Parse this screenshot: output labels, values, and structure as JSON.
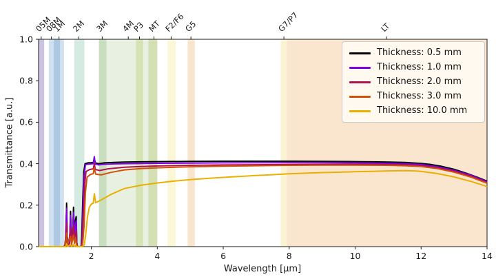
{
  "chart_data": {
    "type": "line",
    "title": "",
    "xlabel": "Wavelength [µm]",
    "ylabel": "Transmittance [a.u.]",
    "xlim": [
      0.4,
      14
    ],
    "ylim": [
      0.0,
      1.0
    ],
    "grid": false,
    "legend_position": "upper right",
    "x_ticks": [
      2,
      4,
      6,
      8,
      10,
      12,
      14
    ],
    "y_ticks": [
      0.0,
      0.2,
      0.4,
      0.6,
      0.8,
      1.0
    ],
    "top_axis_bands": [
      {
        "label": "05M",
        "tick_um": 0.48,
        "span_um": [
          0.39,
          0.57
        ],
        "color": "rgba(98,72,161,0.33)"
      },
      {
        "label": "08M",
        "tick_um": 0.79,
        "span_um": [
          0.71,
          1.05
        ],
        "color": "rgba(45,115,180,0.22)"
      },
      {
        "label": "1M",
        "tick_um": 1.02,
        "span_um": [
          0.86,
          1.17
        ],
        "color": "rgba(45,115,180,0.22)"
      },
      {
        "label": "2M",
        "tick_um": 1.62,
        "span_um": [
          1.48,
          1.79
        ],
        "color": "rgba(80,170,135,0.24)"
      },
      {
        "label": "3M",
        "tick_um": 2.33,
        "span_um": [
          2.23,
          2.46
        ],
        "color": "rgba(80,150,70,0.22)"
      },
      {
        "label": "4M",
        "tick_um": 3.12,
        "span_um": [
          2.23,
          4.0
        ],
        "color": "rgba(120,170,80,0.17)"
      },
      {
        "label": "P3",
        "tick_um": 3.46,
        "span_um": [
          3.35,
          3.57
        ],
        "color": "rgba(170,190,70,0.28)"
      },
      {
        "label": "MT",
        "tick_um": 3.9,
        "span_um": [
          3.73,
          4.0
        ],
        "color": "rgba(165,185,75,0.30)"
      },
      {
        "label": "F2/F6",
        "tick_um": 4.42,
        "span_um": [
          4.31,
          4.56
        ],
        "color": "rgba(240,225,110,0.28)"
      },
      {
        "label": "G5",
        "tick_um": 5.02,
        "span_um": [
          4.92,
          5.14
        ],
        "color": "rgba(235,175,105,0.33)"
      },
      {
        "label": "G7/P7",
        "tick_um": 7.84,
        "span_um": [
          7.74,
          7.93
        ],
        "color": "rgba(242,222,120,0.32)"
      },
      {
        "label": "LT",
        "tick_um": 10.95,
        "span_um": [
          7.93,
          14.0
        ],
        "color": "rgba(237,162,80,0.28)"
      }
    ],
    "series": [
      {
        "name": "thickness-0.5mm",
        "legend_label": "Thickness: 0.5 mm",
        "color": "#000000",
        "points": [
          [
            0.4,
            0
          ],
          [
            1.17,
            0
          ],
          [
            1.2,
            0.01
          ],
          [
            1.23,
            0.06
          ],
          [
            1.25,
            0.21
          ],
          [
            1.27,
            0.05
          ],
          [
            1.3,
            0.015
          ],
          [
            1.34,
            0.02
          ],
          [
            1.37,
            0.17
          ],
          [
            1.4,
            0.03
          ],
          [
            1.43,
            0.04
          ],
          [
            1.46,
            0.19
          ],
          [
            1.49,
            0.05
          ],
          [
            1.51,
            0.12
          ],
          [
            1.54,
            0.145
          ],
          [
            1.56,
            0.02
          ],
          [
            1.58,
            0
          ],
          [
            1.69,
            0
          ],
          [
            1.71,
            0.05
          ],
          [
            1.74,
            0.22
          ],
          [
            1.77,
            0.36
          ],
          [
            1.81,
            0.4
          ],
          [
            1.9,
            0.404
          ],
          [
            2.0,
            0.405
          ],
          [
            2.06,
            0.406
          ],
          [
            2.09,
            0.428
          ],
          [
            2.12,
            0.404
          ],
          [
            2.22,
            0.4
          ],
          [
            2.4,
            0.404
          ],
          [
            2.7,
            0.406
          ],
          [
            3.0,
            0.408
          ],
          [
            3.5,
            0.409
          ],
          [
            4.0,
            0.41
          ],
          [
            5.0,
            0.411
          ],
          [
            6.0,
            0.412
          ],
          [
            7.0,
            0.412
          ],
          [
            8.0,
            0.412
          ],
          [
            9.0,
            0.411
          ],
          [
            10.0,
            0.41
          ],
          [
            10.5,
            0.409
          ],
          [
            11.0,
            0.408
          ],
          [
            11.5,
            0.406
          ],
          [
            12.0,
            0.401
          ],
          [
            12.3,
            0.396
          ],
          [
            12.6,
            0.388
          ],
          [
            13.0,
            0.373
          ],
          [
            13.4,
            0.352
          ],
          [
            13.7,
            0.335
          ],
          [
            14.0,
            0.316
          ]
        ]
      },
      {
        "name": "thickness-1.0mm",
        "legend_label": "Thickness: 1.0 mm",
        "color": "#7F00E0",
        "points": [
          [
            0.4,
            0
          ],
          [
            1.18,
            0
          ],
          [
            1.21,
            0.01
          ],
          [
            1.25,
            0.185
          ],
          [
            1.27,
            0.04
          ],
          [
            1.3,
            0.01
          ],
          [
            1.34,
            0.015
          ],
          [
            1.37,
            0.15
          ],
          [
            1.4,
            0.025
          ],
          [
            1.43,
            0.03
          ],
          [
            1.46,
            0.165
          ],
          [
            1.49,
            0.04
          ],
          [
            1.51,
            0.1
          ],
          [
            1.54,
            0.125
          ],
          [
            1.56,
            0.015
          ],
          [
            1.58,
            0
          ],
          [
            1.69,
            0
          ],
          [
            1.72,
            0.04
          ],
          [
            1.75,
            0.2
          ],
          [
            1.78,
            0.34
          ],
          [
            1.82,
            0.395
          ],
          [
            1.92,
            0.398
          ],
          [
            2.0,
            0.399
          ],
          [
            2.06,
            0.4
          ],
          [
            2.09,
            0.434
          ],
          [
            2.12,
            0.398
          ],
          [
            2.22,
            0.394
          ],
          [
            2.4,
            0.397
          ],
          [
            2.7,
            0.399
          ],
          [
            3.0,
            0.4
          ],
          [
            4.0,
            0.402
          ],
          [
            5.0,
            0.403
          ],
          [
            6.0,
            0.404
          ],
          [
            8.0,
            0.405
          ],
          [
            10.0,
            0.404
          ],
          [
            11.0,
            0.402
          ],
          [
            11.5,
            0.4
          ],
          [
            12.0,
            0.396
          ],
          [
            12.5,
            0.385
          ],
          [
            13.0,
            0.368
          ],
          [
            13.5,
            0.345
          ],
          [
            14.0,
            0.313
          ]
        ]
      },
      {
        "name": "thickness-2.0mm",
        "legend_label": "Thickness: 2.0 mm",
        "color": "#B0134B",
        "points": [
          [
            0.4,
            0
          ],
          [
            1.19,
            0
          ],
          [
            1.22,
            0.005
          ],
          [
            1.25,
            0.115
          ],
          [
            1.27,
            0.02
          ],
          [
            1.31,
            0.005
          ],
          [
            1.37,
            0.09
          ],
          [
            1.4,
            0.015
          ],
          [
            1.46,
            0.1
          ],
          [
            1.49,
            0.025
          ],
          [
            1.51,
            0.06
          ],
          [
            1.54,
            0.075
          ],
          [
            1.56,
            0.01
          ],
          [
            1.58,
            0
          ],
          [
            1.7,
            0
          ],
          [
            1.73,
            0.03
          ],
          [
            1.76,
            0.15
          ],
          [
            1.8,
            0.3
          ],
          [
            1.84,
            0.362
          ],
          [
            1.95,
            0.372
          ],
          [
            2.06,
            0.375
          ],
          [
            2.09,
            0.4
          ],
          [
            2.12,
            0.372
          ],
          [
            2.25,
            0.367
          ],
          [
            2.5,
            0.375
          ],
          [
            3.0,
            0.383
          ],
          [
            3.5,
            0.386
          ],
          [
            4.0,
            0.389
          ],
          [
            5.0,
            0.392
          ],
          [
            6.0,
            0.394
          ],
          [
            7.0,
            0.395
          ],
          [
            8.0,
            0.396
          ],
          [
            10.0,
            0.397
          ],
          [
            11.0,
            0.396
          ],
          [
            11.5,
            0.394
          ],
          [
            12.0,
            0.39
          ],
          [
            12.5,
            0.38
          ],
          [
            13.0,
            0.363
          ],
          [
            13.5,
            0.34
          ],
          [
            14.0,
            0.309
          ]
        ]
      },
      {
        "name": "thickness-3.0mm",
        "legend_label": "Thickness: 3.0 mm",
        "color": "#D0530B",
        "points": [
          [
            0.4,
            0
          ],
          [
            1.2,
            0
          ],
          [
            1.25,
            0.065
          ],
          [
            1.28,
            0.01
          ],
          [
            1.37,
            0.05
          ],
          [
            1.4,
            0.008
          ],
          [
            1.46,
            0.055
          ],
          [
            1.49,
            0.015
          ],
          [
            1.52,
            0.04
          ],
          [
            1.56,
            0.005
          ],
          [
            1.58,
            0
          ],
          [
            1.71,
            0
          ],
          [
            1.74,
            0.02
          ],
          [
            1.78,
            0.1
          ],
          [
            1.82,
            0.26
          ],
          [
            1.87,
            0.335
          ],
          [
            1.97,
            0.348
          ],
          [
            2.06,
            0.352
          ],
          [
            2.09,
            0.382
          ],
          [
            2.13,
            0.35
          ],
          [
            2.3,
            0.346
          ],
          [
            2.6,
            0.358
          ],
          [
            3.0,
            0.37
          ],
          [
            3.5,
            0.376
          ],
          [
            4.0,
            0.38
          ],
          [
            5.0,
            0.385
          ],
          [
            6.0,
            0.388
          ],
          [
            7.0,
            0.39
          ],
          [
            8.0,
            0.392
          ],
          [
            9.0,
            0.393
          ],
          [
            10.0,
            0.393
          ],
          [
            11.0,
            0.392
          ],
          [
            11.5,
            0.39
          ],
          [
            12.0,
            0.386
          ],
          [
            12.5,
            0.376
          ],
          [
            13.0,
            0.359
          ],
          [
            13.5,
            0.336
          ],
          [
            14.0,
            0.306
          ]
        ]
      },
      {
        "name": "thickness-10.0mm",
        "legend_label": "Thickness: 10.0 mm",
        "color": "#E9B000",
        "points": [
          [
            0.4,
            0
          ],
          [
            1.22,
            0
          ],
          [
            1.25,
            0.012
          ],
          [
            1.28,
            0
          ],
          [
            1.37,
            0.008
          ],
          [
            1.4,
            0
          ],
          [
            1.46,
            0.01
          ],
          [
            1.49,
            0
          ],
          [
            1.52,
            0.006
          ],
          [
            1.56,
            0
          ],
          [
            1.74,
            0
          ],
          [
            1.79,
            0.01
          ],
          [
            1.83,
            0.06
          ],
          [
            1.88,
            0.14
          ],
          [
            1.94,
            0.19
          ],
          [
            2.0,
            0.205
          ],
          [
            2.06,
            0.21
          ],
          [
            2.09,
            0.255
          ],
          [
            2.13,
            0.212
          ],
          [
            2.3,
            0.225
          ],
          [
            2.6,
            0.252
          ],
          [
            3.0,
            0.28
          ],
          [
            3.5,
            0.296
          ],
          [
            4.0,
            0.307
          ],
          [
            4.5,
            0.316
          ],
          [
            5.0,
            0.323
          ],
          [
            5.5,
            0.329
          ],
          [
            6.0,
            0.334
          ],
          [
            7.0,
            0.343
          ],
          [
            8.0,
            0.351
          ],
          [
            9.0,
            0.357
          ],
          [
            10.0,
            0.361
          ],
          [
            10.5,
            0.363
          ],
          [
            11.0,
            0.365
          ],
          [
            11.5,
            0.366
          ],
          [
            11.8,
            0.365
          ],
          [
            12.0,
            0.363
          ],
          [
            12.5,
            0.352
          ],
          [
            13.0,
            0.336
          ],
          [
            13.5,
            0.315
          ],
          [
            14.0,
            0.29
          ]
        ]
      }
    ]
  },
  "style": {
    "spine_color": "#1a1a1a",
    "plot_background": "#ffffff",
    "legend_background": "rgba(255,252,244,0.88)",
    "legend_border": "#c9c9c9"
  }
}
